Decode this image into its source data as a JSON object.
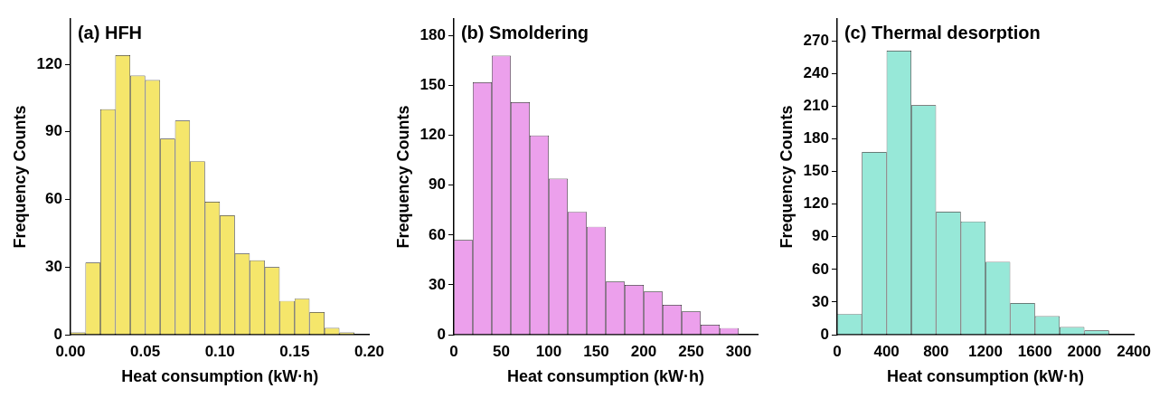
{
  "chart_data": [
    {
      "type": "histogram",
      "title": "(a) HFH",
      "xlabel": "Heat consumption (kW·h)",
      "ylabel": "Frequency Counts",
      "color": "#f5e66b",
      "bins": [
        0,
        0.01,
        0.02,
        0.03,
        0.04,
        0.05,
        0.06,
        0.07,
        0.08,
        0.09,
        0.1,
        0.11,
        0.12,
        0.13,
        0.14,
        0.15,
        0.16,
        0.17,
        0.18,
        0.19
      ],
      "values": [
        1,
        32,
        100,
        124,
        115,
        113,
        87,
        95,
        77,
        59,
        53,
        36,
        33,
        30,
        15,
        16,
        10,
        3,
        1
      ],
      "xlim": [
        0,
        0.2
      ],
      "xticks": [
        {
          "value": 0,
          "label": "0.00"
        },
        {
          "value": 0.05,
          "label": "0.05"
        },
        {
          "value": 0.1,
          "label": "0.10"
        },
        {
          "value": 0.15,
          "label": "0.15"
        },
        {
          "value": 0.2,
          "label": "0.20"
        }
      ],
      "ylim": [
        0,
        140
      ],
      "yticks": [
        0,
        30,
        60,
        90,
        120
      ],
      "grid": false,
      "legend": false
    },
    {
      "type": "histogram",
      "title": "(b) Smoldering",
      "xlabel": "Heat consumption (kW·h)",
      "ylabel": "Frequency Counts",
      "color": "#eca0ec",
      "bins": [
        0,
        20,
        40,
        60,
        80,
        100,
        120,
        140,
        160,
        180,
        200,
        220,
        240,
        260,
        280,
        300
      ],
      "values": [
        57,
        152,
        168,
        140,
        120,
        94,
        74,
        65,
        32,
        30,
        26,
        18,
        14,
        6,
        4
      ],
      "xlim": [
        0,
        320
      ],
      "xticks": [
        0,
        50,
        100,
        150,
        200,
        250,
        300
      ],
      "ylim": [
        0,
        190
      ],
      "yticks": [
        0,
        30,
        60,
        90,
        120,
        150,
        180
      ],
      "grid": false,
      "legend": false
    },
    {
      "type": "histogram",
      "title": "(c) Thermal desorption",
      "xlabel": "Heat consumption (kW·h)",
      "ylabel": "Frequency Counts",
      "color": "#97e8d8",
      "bins": [
        0,
        200,
        400,
        600,
        800,
        1000,
        1200,
        1400,
        1600,
        1800,
        2000,
        2200
      ],
      "values": [
        19,
        168,
        261,
        211,
        113,
        104,
        67,
        29,
        17,
        7,
        4
      ],
      "xlim": [
        0,
        2400
      ],
      "xticks": [
        0,
        400,
        800,
        1200,
        1600,
        2000,
        2400
      ],
      "ylim": [
        0,
        290
      ],
      "yticks": [
        0,
        30,
        60,
        90,
        120,
        150,
        180,
        210,
        240,
        270
      ],
      "grid": false,
      "legend": false
    }
  ]
}
